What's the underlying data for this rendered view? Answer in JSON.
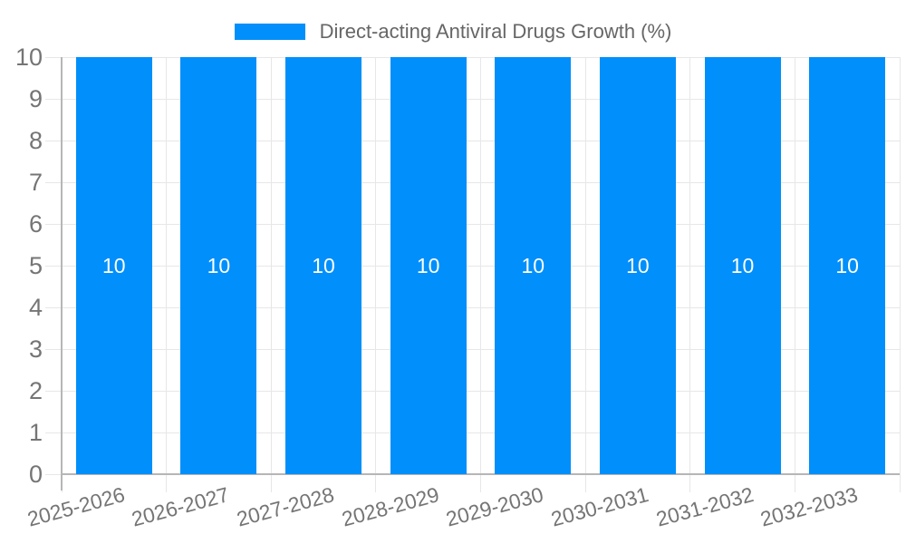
{
  "legend": {
    "label": "Direct-acting Antiviral Drugs Growth (%)"
  },
  "chart_data": {
    "type": "bar",
    "title": "Direct-acting Antiviral Drugs Growth (%)",
    "categories": [
      "2025-2026",
      "2026-2027",
      "2027-2028",
      "2028-2029",
      "2029-2030",
      "2030-2031",
      "2031-2032",
      "2032-2033"
    ],
    "series": [
      {
        "name": "Direct-acting Antiviral Drugs Growth (%)",
        "values": [
          10,
          10,
          10,
          10,
          10,
          10,
          10,
          10
        ]
      }
    ],
    "values": [
      10,
      10,
      10,
      10,
      10,
      10,
      10,
      10
    ],
    "bar_value_labels": [
      "10",
      "10",
      "10",
      "10",
      "10",
      "10",
      "10",
      "10"
    ],
    "xlabel": "",
    "ylabel": "",
    "ylim": [
      0,
      10
    ],
    "ytick_step": 1,
    "yticks": [
      0,
      1,
      2,
      3,
      4,
      5,
      6,
      7,
      8,
      9,
      10
    ],
    "grid": true,
    "legend_position": "top",
    "colors": {
      "bar": "#008FFB",
      "bar_label": "#FFFFFF",
      "grid": "#E7E7E7",
      "axis": "#B6B6B6",
      "tick_label": "#757575",
      "title": "#666666"
    }
  }
}
